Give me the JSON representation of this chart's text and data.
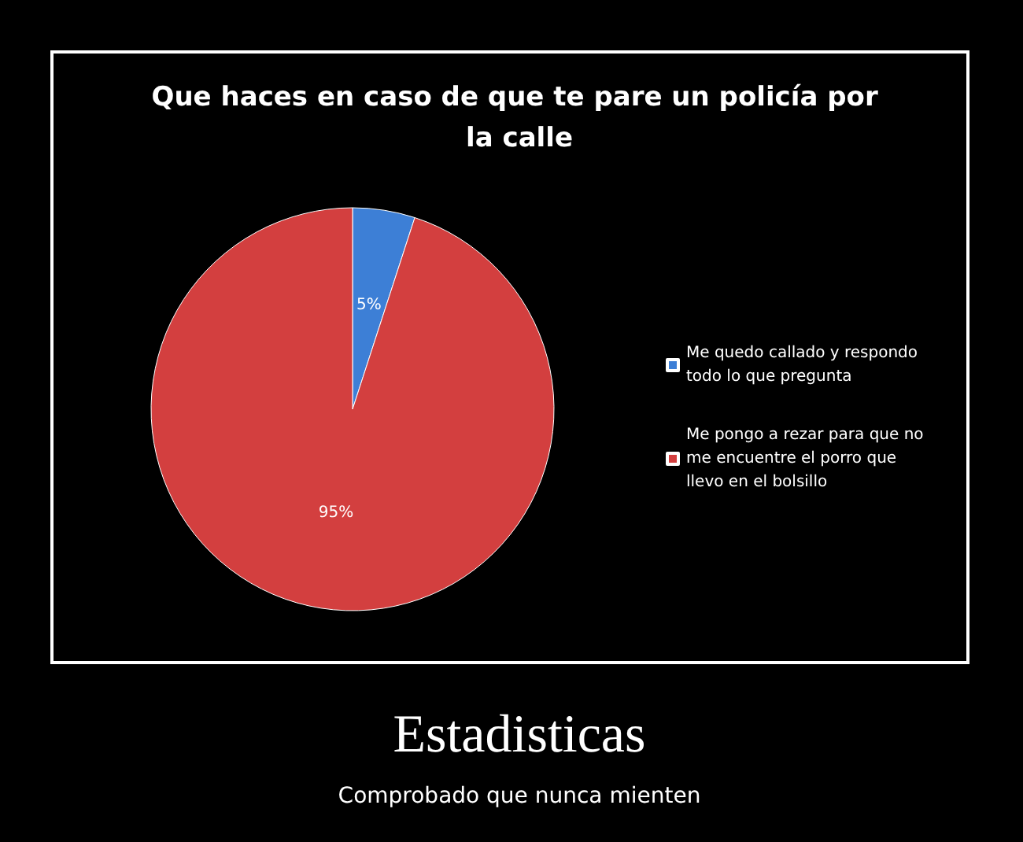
{
  "chart_data": {
    "type": "pie",
    "title": "Que haces en caso de que te pare un policía por la calle",
    "categories": [
      "Me quedo callado y respondo todo lo que pregunta",
      "Me pongo a rezar para que no me encuentre el porro que llevo en el bolsillo"
    ],
    "values": [
      5,
      95
    ],
    "colors": [
      "#3d7fd6",
      "#d33f3f"
    ],
    "value_labels": [
      "5%",
      "95%"
    ],
    "legend": "right",
    "annotations": [
      "Estadisticas",
      "Comprobado que nunca mienten"
    ]
  }
}
